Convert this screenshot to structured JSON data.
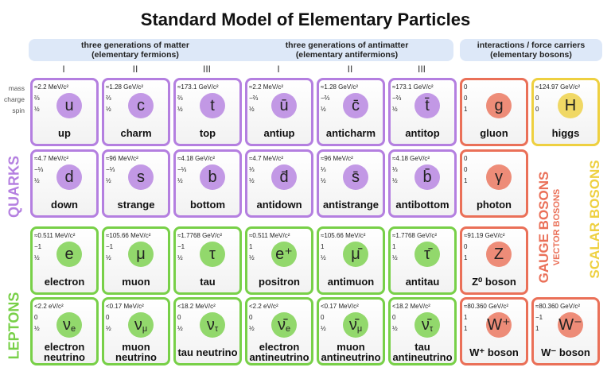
{
  "title": "Standard Model of Elementary Particles",
  "headers": [
    {
      "line1": "three generations of matter",
      "line2": "(elementary fermions)"
    },
    {
      "line1": "three generations of antimatter",
      "line2": "(elementary antifermions)"
    },
    {
      "line1": "interactions / force carriers",
      "line2": "(elementary bosons)"
    }
  ],
  "generations": [
    "I",
    "II",
    "III",
    "I",
    "II",
    "III"
  ],
  "property_labels": [
    "mass",
    "charge",
    "spin"
  ],
  "side_labels": {
    "quarks": "QUARKS",
    "leptons": "LEPTONS",
    "gauge": "GAUGE BOSONS",
    "vector": "VECTOR BOSONS",
    "scalar": "SCALAR BOSONS"
  },
  "colors": {
    "quark": "#b47fe0",
    "lepton": "#78d048",
    "gauge": "#ea7058",
    "scalar": "#eed040"
  },
  "particles": [
    [
      {
        "mass": "≈2.2 MeV/c²",
        "charge": "⅔",
        "spin": "½",
        "symbol": "u",
        "name": "up",
        "color": "#b47fe0"
      },
      {
        "mass": "≈1.28 GeV/c²",
        "charge": "⅔",
        "spin": "½",
        "symbol": "c",
        "name": "charm",
        "color": "#b47fe0"
      },
      {
        "mass": "≈173.1 GeV/c²",
        "charge": "⅔",
        "spin": "½",
        "symbol": "t",
        "name": "top",
        "color": "#b47fe0"
      },
      {
        "mass": "≈2.2 MeV/c²",
        "charge": "−⅔",
        "spin": "½",
        "symbol": "ū",
        "name": "antiup",
        "color": "#b47fe0"
      },
      {
        "mass": "≈1.28 GeV/c²",
        "charge": "−⅔",
        "spin": "½",
        "symbol": "c̄",
        "name": "anticharm",
        "color": "#b47fe0"
      },
      {
        "mass": "≈173.1 GeV/c²",
        "charge": "−⅔",
        "spin": "½",
        "symbol": "t̄",
        "name": "antitop",
        "color": "#b47fe0"
      },
      {
        "mass": "0",
        "charge": "0",
        "spin": "1",
        "symbol": "g",
        "name": "gluon",
        "color": "#ea7058"
      },
      {
        "mass": "≈124.97 GeV/c²",
        "charge": "0",
        "spin": "0",
        "symbol": "H",
        "name": "higgs",
        "color": "#eed040"
      }
    ],
    [
      {
        "mass": "≈4.7 MeV/c²",
        "charge": "−⅓",
        "spin": "½",
        "symbol": "d",
        "name": "down",
        "color": "#b47fe0"
      },
      {
        "mass": "≈96 MeV/c²",
        "charge": "−⅓",
        "spin": "½",
        "symbol": "s",
        "name": "strange",
        "color": "#b47fe0"
      },
      {
        "mass": "≈4.18 GeV/c²",
        "charge": "−⅓",
        "spin": "½",
        "symbol": "b",
        "name": "bottom",
        "color": "#b47fe0"
      },
      {
        "mass": "≈4.7 MeV/c²",
        "charge": "⅓",
        "spin": "½",
        "symbol": "d̄",
        "name": "antidown",
        "color": "#b47fe0"
      },
      {
        "mass": "≈96 MeV/c²",
        "charge": "⅓",
        "spin": "½",
        "symbol": "s̄",
        "name": "antistrange",
        "color": "#b47fe0"
      },
      {
        "mass": "≈4.18 GeV/c²",
        "charge": "⅓",
        "spin": "½",
        "symbol": "b̄",
        "name": "antibottom",
        "color": "#b47fe0"
      },
      {
        "mass": "0",
        "charge": "0",
        "spin": "1",
        "symbol": "γ",
        "name": "photon",
        "color": "#ea7058"
      },
      null
    ],
    [
      {
        "mass": "≈0.511 MeV/c²",
        "charge": "−1",
        "spin": "½",
        "symbol": "e",
        "name": "electron",
        "color": "#78d048"
      },
      {
        "mass": "≈105.66 MeV/c²",
        "charge": "−1",
        "spin": "½",
        "symbol": "μ",
        "name": "muon",
        "color": "#78d048"
      },
      {
        "mass": "≈1.7768 GeV/c²",
        "charge": "−1",
        "spin": "½",
        "symbol": "τ",
        "name": "tau",
        "color": "#78d048"
      },
      {
        "mass": "≈0.511 MeV/c²",
        "charge": "1",
        "spin": "½",
        "symbol": "e⁺",
        "name": "positron",
        "color": "#78d048"
      },
      {
        "mass": "≈105.66 MeV/c²",
        "charge": "1",
        "spin": "½",
        "symbol": "μ̄",
        "name": "antimuon",
        "color": "#78d048"
      },
      {
        "mass": "≈1.7768 GeV/c²",
        "charge": "1",
        "spin": "½",
        "symbol": "τ̄",
        "name": "antitau",
        "color": "#78d048"
      },
      {
        "mass": "≈91.19 GeV/c²",
        "charge": "0",
        "spin": "1",
        "symbol": "Z",
        "name": "Z⁰ boson",
        "color": "#ea7058"
      },
      null
    ],
    [
      {
        "mass": "<2.2 eV/c²",
        "charge": "0",
        "spin": "½",
        "symbol": "ν",
        "sub": "e",
        "name": "electron neutrino",
        "color": "#78d048"
      },
      {
        "mass": "<0.17 MeV/c²",
        "charge": "0",
        "spin": "½",
        "symbol": "ν",
        "sub": "μ",
        "name": "muon neutrino",
        "color": "#78d048"
      },
      {
        "mass": "<18.2 MeV/c²",
        "charge": "0",
        "spin": "½",
        "symbol": "ν",
        "sub": "τ",
        "name": "tau neutrino",
        "color": "#78d048"
      },
      {
        "mass": "<2.2 eV/c²",
        "charge": "0",
        "spin": "½",
        "symbol": "ν̄",
        "sub": "e",
        "name": "electron antineutrino",
        "color": "#78d048"
      },
      {
        "mass": "<0.17 MeV/c²",
        "charge": "0",
        "spin": "½",
        "symbol": "ν̄",
        "sub": "μ",
        "name": "muon antineutrino",
        "color": "#78d048"
      },
      {
        "mass": "<18.2 MeV/c²",
        "charge": "0",
        "spin": "½",
        "symbol": "ν̄",
        "sub": "τ",
        "name": "tau antineutrino",
        "color": "#78d048"
      },
      {
        "mass": "≈80.360 GeV/c²",
        "charge": "1",
        "spin": "1",
        "symbol": "W⁺",
        "name": "W⁺ boson",
        "color": "#ea7058"
      },
      {
        "mass": "≈80.360 GeV/c²",
        "charge": "−1",
        "spin": "1",
        "symbol": "W⁻",
        "name": "W⁻ boson",
        "color": "#ea7058"
      }
    ]
  ]
}
